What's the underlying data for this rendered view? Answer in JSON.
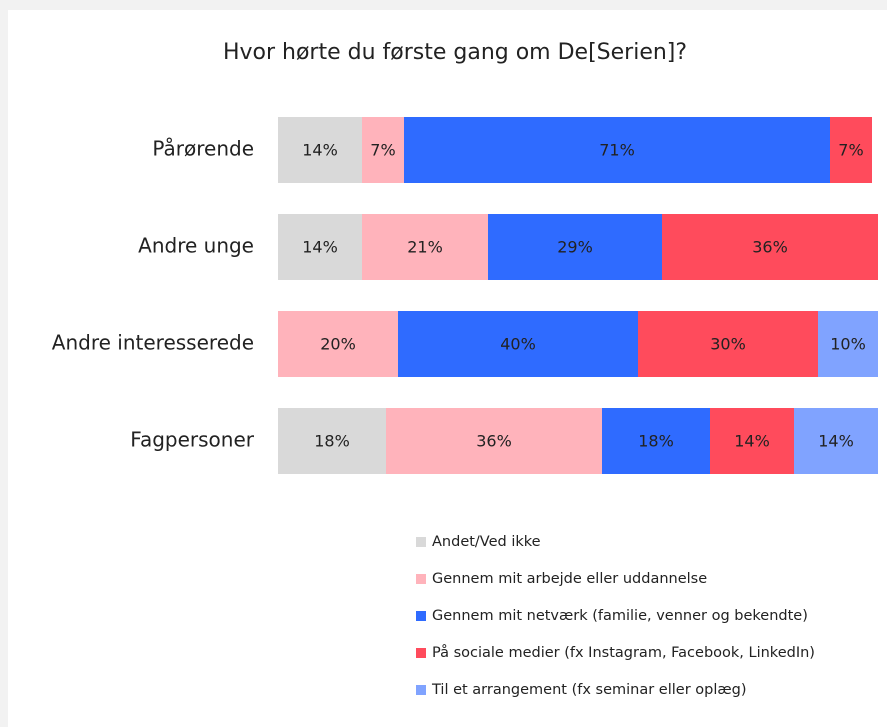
{
  "chart_data": {
    "type": "stacked-bar-horizontal",
    "title": "Hvor hørte du første gang om De[Serien]?",
    "categories": [
      "Pårørende",
      "Andre unge",
      "Andre interesserede",
      "Fagpersoner"
    ],
    "xlim": [
      0,
      100
    ],
    "series": [
      {
        "name": "Andet/Ved ikke",
        "color": "#d9d9d9",
        "values": [
          14,
          14,
          null,
          18
        ],
        "value_labels": [
          "14%",
          "14%",
          null,
          "18%"
        ]
      },
      {
        "name": "Gennem mit arbejde eller uddannelse",
        "color": "#ffb3bb",
        "values": [
          7,
          21,
          20,
          36
        ],
        "value_labels": [
          "7%",
          "21%",
          "20%",
          "36%"
        ]
      },
      {
        "name": "Gennem mit netværk (familie, venner og bekendte)",
        "color": "#2f6bff",
        "values": [
          71,
          29,
          40,
          18
        ],
        "value_labels": [
          "71%",
          "29%",
          "40%",
          "18%"
        ]
      },
      {
        "name": "På sociale medier (fx Instagram, Facebook, LinkedIn)",
        "color": "#ff4b5c",
        "values": [
          7,
          36,
          30,
          14
        ],
        "value_labels": [
          "7%",
          "36%",
          "30%",
          "14%"
        ]
      },
      {
        "name": "Til et arrangement (fx seminar eller oplæg)",
        "color": "#80a3ff",
        "values": [
          null,
          null,
          10,
          14
        ],
        "value_labels": [
          null,
          null,
          "10%",
          "14%"
        ]
      }
    ]
  }
}
